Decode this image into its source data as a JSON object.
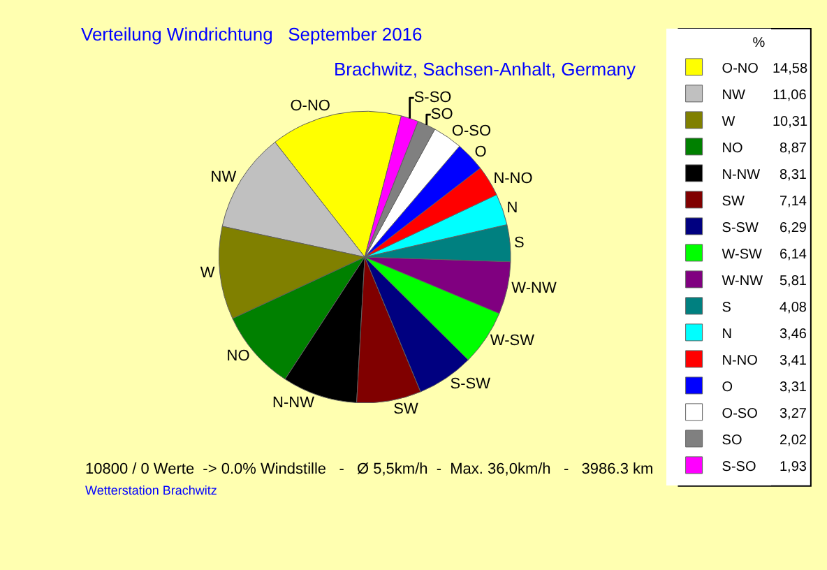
{
  "chart_data": {
    "type": "pie",
    "title": "Verteilung Windrichtung   September 2016",
    "subtitle": "Brachwitz, Sachsen-Anhalt, Germany",
    "legend_title": "%",
    "categories": [
      "O-NO",
      "NW",
      "W",
      "NO",
      "N-NW",
      "SW",
      "S-SW",
      "W-SW",
      "W-NW",
      "S",
      "N",
      "N-NO",
      "O",
      "O-SO",
      "SO",
      "S-SO"
    ],
    "values": [
      14.58,
      11.06,
      10.31,
      8.87,
      8.31,
      7.14,
      6.29,
      6.14,
      5.81,
      4.08,
      3.46,
      3.41,
      3.31,
      3.27,
      2.02,
      1.93
    ],
    "value_labels": [
      "14,58",
      "11,06",
      "10,31",
      "8,87",
      "8,31",
      "7,14",
      "6,29",
      "6,14",
      "5,81",
      "4,08",
      "3,46",
      "3,41",
      "3,31",
      "3,27",
      "2,02",
      "1,93"
    ],
    "colors": [
      "#ffff00",
      "#c0c0c0",
      "#808000",
      "#008000",
      "#000000",
      "#800000",
      "#000080",
      "#00ff00",
      "#800080",
      "#008080",
      "#00ffff",
      "#ff0000",
      "#0000ff",
      "#ffffff",
      "#808080",
      "#ff00ff"
    ],
    "legend": "right",
    "annotations": [
      "10800 / 0 Werte  -> 0.0% Windstille   -   Ø 5,5km/h  -  Max. 36,0km/h   -   3986.3 km",
      "Wetterstation Brachwitz"
    ]
  }
}
